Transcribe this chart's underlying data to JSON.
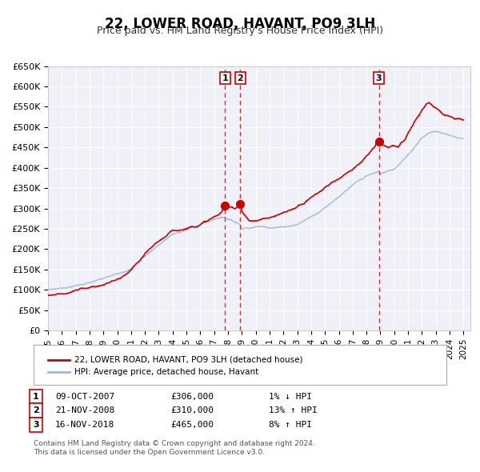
{
  "title": "22, LOWER ROAD, HAVANT, PO9 3LH",
  "subtitle": "Price paid vs. HM Land Registry's House Price Index (HPI)",
  "ylabel": "",
  "background_color": "#ffffff",
  "plot_bg_color": "#f0f0f8",
  "grid_color": "#ffffff",
  "hpi_color": "#a0b8d8",
  "price_color": "#cc0000",
  "ylim": [
    0,
    650000
  ],
  "yticks": [
    0,
    50000,
    100000,
    150000,
    200000,
    250000,
    300000,
    350000,
    400000,
    450000,
    500000,
    550000,
    600000,
    650000
  ],
  "ytick_labels": [
    "£0",
    "£50K",
    "£100K",
    "£150K",
    "£200K",
    "£250K",
    "£300K",
    "£350K",
    "£400K",
    "£450K",
    "£500K",
    "£550K",
    "£600K",
    "£650K"
  ],
  "xlim_start": 1995.0,
  "xlim_end": 2025.5,
  "transactions": [
    {
      "num": 1,
      "date": "09-OCT-2007",
      "year": 2007.78,
      "price": 306000,
      "hpi_rel": "1% ↓ HPI"
    },
    {
      "num": 2,
      "date": "21-NOV-2008",
      "year": 2008.89,
      "price": 310000,
      "hpi_rel": "13% ↑ HPI"
    },
    {
      "num": 3,
      "date": "16-NOV-2018",
      "year": 2018.89,
      "price": 465000,
      "hpi_rel": "8% ↑ HPI"
    }
  ],
  "legend_label_price": "22, LOWER ROAD, HAVANT, PO9 3LH (detached house)",
  "legend_label_hpi": "HPI: Average price, detached house, Havant",
  "footer1": "Contains HM Land Registry data © Crown copyright and database right 2024.",
  "footer2": "This data is licensed under the Open Government Licence v3.0."
}
